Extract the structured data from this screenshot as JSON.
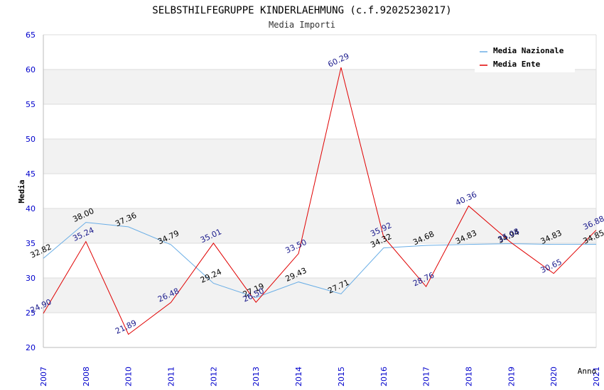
{
  "chart_data": {
    "type": "line",
    "title": "SELBSTHILFEGRUPPE KINDERLAEHMUNG (c.f.92025230217)",
    "subtitle": "Media Importi",
    "xlabel": "Anno",
    "ylabel": "Media",
    "categories": [
      "2007",
      "2008",
      "2010",
      "2011",
      "2012",
      "2013",
      "2014",
      "2015",
      "2016",
      "2017",
      "2018",
      "2019",
      "2020",
      "2021"
    ],
    "ylim": [
      20,
      65
    ],
    "yticks": [
      20,
      25,
      30,
      35,
      40,
      45,
      50,
      55,
      60,
      65
    ],
    "grid": true,
    "legend_position": "top-right",
    "series": [
      {
        "name": "Media Nazionale",
        "color": "#6aaee6",
        "label_color": "#000000",
        "values": [
          32.82,
          38.0,
          37.36,
          34.79,
          29.24,
          27.19,
          29.43,
          27.71,
          34.32,
          34.68,
          34.83,
          34.94,
          34.83,
          34.85
        ],
        "labels": [
          "32.82",
          "38.00",
          "37.36",
          "34.79",
          "29.24",
          "27.19",
          "29.43",
          "27.71",
          "34.32",
          "34.68",
          "34.83",
          "34.94",
          "34.83",
          "34.85"
        ]
      },
      {
        "name": "Media Ente",
        "color": "#e00000",
        "label_color": "#1a1a8c",
        "values": [
          24.9,
          35.24,
          21.89,
          26.48,
          35.01,
          26.5,
          33.5,
          60.29,
          35.92,
          28.76,
          40.36,
          35.08,
          30.65,
          36.88
        ],
        "labels": [
          "24.90",
          "35.24",
          "21.89",
          "26.48",
          "35.01",
          "26.50",
          "33.50",
          "60.29",
          "35.92",
          "28.76",
          "40.36",
          "35.08",
          "30.65",
          "36.88"
        ]
      }
    ],
    "colors": {
      "axis_text": "#0000cc",
      "band": "#f2f2f2",
      "grid": "#dcdcdc",
      "axis_line": "#bbbbbb"
    }
  }
}
